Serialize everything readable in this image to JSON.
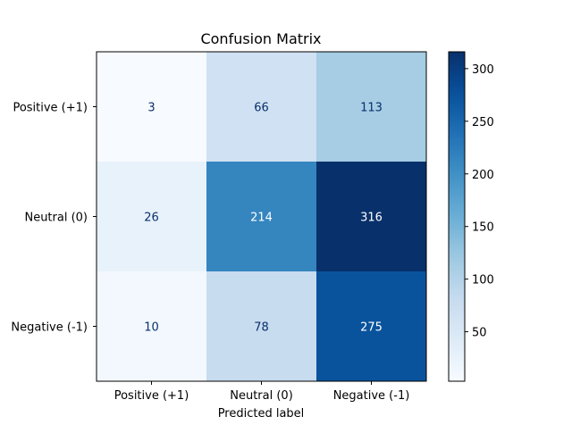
{
  "chart_data": {
    "type": "heatmap",
    "title": "Confusion Matrix",
    "xlabel": "Predicted label",
    "ylabel": "",
    "x_categories": [
      "Positive (+1)",
      "Neutral (0)",
      "Negative (-1)"
    ],
    "y_categories": [
      "Positive (+1)",
      "Neutral (0)",
      "Negative (-1)"
    ],
    "values": [
      [
        3,
        66,
        113
      ],
      [
        26,
        214,
        316
      ],
      [
        10,
        78,
        275
      ]
    ],
    "colormap": "Blues",
    "color_range": [
      3,
      316
    ],
    "colorbar_ticks": [
      50,
      100,
      150,
      200,
      250,
      300
    ],
    "grid": false,
    "colors": {
      "cell_text_light": "#08306b",
      "cell_text_dark": "#ffffff"
    }
  }
}
